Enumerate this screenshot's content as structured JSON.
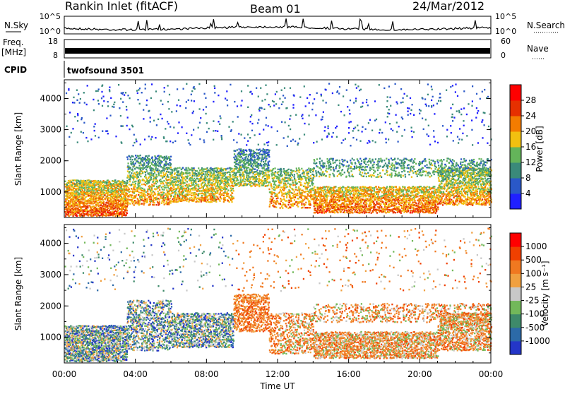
{
  "header": {
    "station_title": "Rankin Inlet (fitACF)",
    "beam_title": "Beam 01",
    "date_title": "24/Mar/2012"
  },
  "noise_panel": {
    "left_label": "N.Sky",
    "right_label": "N.Search",
    "left_ticks": [
      "10^5",
      "10^0"
    ],
    "right_ticks": [
      "10^5",
      "10^0"
    ]
  },
  "freq_panel": {
    "left_label_line1": "Freq.",
    "left_label_line2": "[MHz]",
    "right_label": "Nave",
    "left_ticks": [
      "18",
      "8"
    ],
    "right_ticks": [
      "60",
      "0"
    ]
  },
  "cpid": {
    "label": "CPID",
    "value": "twofsound 3501"
  },
  "power_panel": {
    "ylabel": "Slant Range [km]",
    "y_ticks": [
      "4000",
      "3000",
      "2000",
      "1000"
    ],
    "colorbar_label": "Power [dB]",
    "colorbar_ticks": [
      "28",
      "24",
      "20",
      "16",
      "12",
      "8",
      "4"
    ],
    "colors": [
      "#2020ff",
      "#2a58c8",
      "#3a8a7a",
      "#64b45a",
      "#f2c010",
      "#f47c00",
      "#e63000",
      "#ff0000"
    ]
  },
  "velocity_panel": {
    "ylabel": "Slant Range [km]",
    "y_ticks": [
      "4000",
      "3000",
      "2000",
      "1000"
    ],
    "colorbar_label": "Velocity [m s⁻¹]",
    "colorbar_ticks": [
      "1000",
      "500",
      "100",
      "25",
      "-25",
      "-100",
      "-500",
      "-1000"
    ],
    "colors": [
      "#2436c8",
      "#2c6aa8",
      "#3e8a6a",
      "#72b85a",
      "#c8c8c8",
      "#f0a040",
      "#f07820",
      "#f04000",
      "#ff0000"
    ]
  },
  "x_axis": {
    "ticks": [
      "00:00",
      "04:00",
      "08:00",
      "12:00",
      "16:00",
      "20:00",
      "00:00"
    ],
    "label": "Time UT"
  },
  "chart_data": {
    "type": "heatmap",
    "panels": [
      "noise",
      "frequency",
      "power",
      "velocity"
    ],
    "x_range_hours": [
      0,
      24
    ],
    "y_range_km": [
      180,
      4600
    ],
    "noise_log_range": [
      0,
      5
    ],
    "frequency_range_mhz": [
      8,
      18
    ],
    "nave_range": [
      0,
      60
    ],
    "power_scale_db": [
      0,
      30
    ],
    "velocity_scale_ms": [
      -1000,
      1000
    ]
  }
}
